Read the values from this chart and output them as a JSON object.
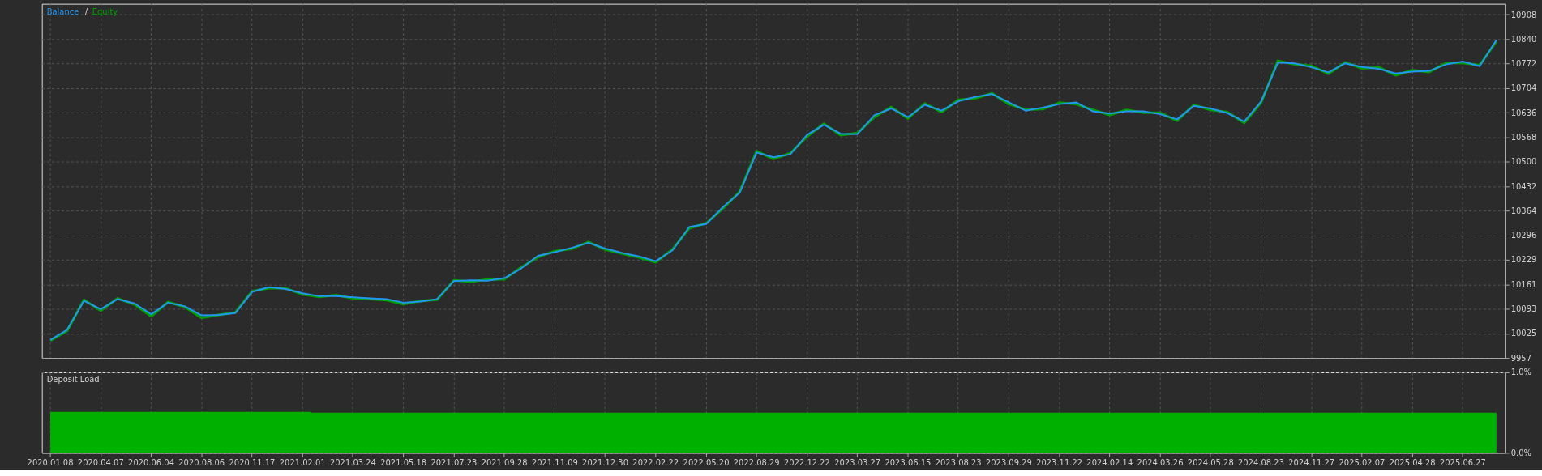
{
  "chart_data": [
    {
      "type": "line",
      "legend": "top left",
      "annotations": [
        "/"
      ],
      "grid": true,
      "line_style": "solid",
      "marker": "none",
      "tick_labels": "y",
      "categories": [
        "2020.01.08",
        null,
        null,
        "2020.04.07",
        null,
        null,
        "2020.06.04",
        null,
        null,
        "2020.08.06",
        null,
        null,
        "2020.11.17",
        null,
        null,
        "2021.02.01",
        null,
        null,
        "2021.03.24",
        null,
        null,
        "2021.05.18",
        null,
        null,
        "2021.07.23",
        null,
        null,
        "2021.09.28",
        null,
        null,
        "2021.11.09",
        null,
        null,
        "2021.12.30",
        null,
        null,
        "2022.02.22",
        null,
        null,
        "2022.05.20",
        null,
        null,
        "2022.08.29",
        null,
        null,
        "2022.12.22",
        null,
        null,
        "2023.03.27",
        null,
        null,
        "2023.06.15",
        null,
        null,
        "2023.08.23",
        null,
        null,
        "2023.09.29",
        null,
        null,
        "2023.11.22",
        null,
        null,
        "2024.02.14",
        null,
        null,
        "2024.03.26",
        null,
        null,
        "2024.05.28",
        null,
        null,
        "2024.08.23",
        null,
        null,
        "2024.11.27",
        null,
        null,
        "2025.02.07",
        null,
        null,
        "2025.04.28",
        null,
        null,
        "2025.06.27",
        null,
        null
      ],
      "ylim": [
        9957,
        10938
      ],
      "yticks": [
        9957,
        10025,
        10093,
        10161,
        10229,
        10296,
        10364,
        10432,
        10500,
        10568,
        10636,
        10704,
        10772,
        10840,
        10908
      ],
      "series": [
        {
          "name": "Equity",
          "color": "#00a000",
          "values": [
            10005,
            10032,
            10118,
            10088,
            10122,
            10105,
            10072,
            10112,
            10098,
            10068,
            10076,
            10083,
            10142,
            10150,
            10150,
            10133,
            10126,
            10131,
            10122,
            10120,
            10117,
            10106,
            10115,
            10118,
            10172,
            10168,
            10174,
            10175,
            10208,
            10236,
            10253,
            10259,
            10278,
            10257,
            10246,
            10235,
            10222,
            10258,
            10316,
            10330,
            10371,
            10418,
            10530,
            10508,
            10524,
            10570,
            10606,
            10574,
            10580,
            10624,
            10652,
            10620,
            10662,
            10638,
            10672,
            10676,
            10690,
            10660,
            10645,
            10646,
            10664,
            10660,
            10644,
            10630,
            10644,
            10636,
            10636,
            10614,
            10658,
            10644,
            10638,
            10608,
            10664,
            10780,
            10770,
            10766,
            10744,
            10776,
            10759,
            10762,
            10740,
            10754,
            10749,
            10774,
            10774,
            10768,
            10834
          ]
        },
        {
          "name": "Balance",
          "color": "#2196f3",
          "values": [
            10007,
            10035,
            10115,
            10092,
            10120,
            10108,
            10078,
            10110,
            10100,
            10075,
            10076,
            10081,
            10140,
            10153,
            10148,
            10136,
            10128,
            10128,
            10125,
            10122,
            10120,
            10110,
            10113,
            10120,
            10170,
            10172,
            10171,
            10178,
            10205,
            10240,
            10250,
            10262,
            10276,
            10260,
            10248,
            10238,
            10225,
            10255,
            10320,
            10328,
            10375,
            10415,
            10526,
            10513,
            10521,
            10575,
            10603,
            10578,
            10577,
            10629,
            10648,
            10624,
            10658,
            10642,
            10668,
            10680,
            10688,
            10665,
            10642,
            10650,
            10660,
            10665,
            10640,
            10634,
            10640,
            10640,
            10632,
            10618,
            10655,
            10648,
            10635,
            10612,
            10667,
            10775,
            10773,
            10762,
            10748,
            10773,
            10763,
            10758,
            10745,
            10750,
            10752,
            10770,
            10778,
            10765,
            10838
          ]
        }
      ]
    },
    {
      "type": "area",
      "title": "Deposit Load",
      "grid": true,
      "categories": [
        "2020.01.08",
        null,
        null,
        "2020.04.07",
        null,
        null,
        "2020.06.04",
        null,
        null,
        "2020.08.06",
        null,
        null,
        "2020.11.17",
        null,
        null,
        "2021.02.01",
        null,
        null,
        "2021.03.24",
        null,
        null,
        "2021.05.18",
        null,
        null,
        "2021.07.23",
        null,
        null,
        "2021.09.28",
        null,
        null,
        "2021.11.09",
        null,
        null,
        "2021.12.30",
        null,
        null,
        "2022.02.22",
        null,
        null,
        "2022.05.20",
        null,
        null,
        "2022.08.29",
        null,
        null,
        "2022.12.22",
        null,
        null,
        "2023.03.27",
        null,
        null,
        "2023.06.15",
        null,
        null,
        "2023.08.23",
        null,
        null,
        "2023.09.29",
        null,
        null,
        "2023.11.22",
        null,
        null,
        "2024.02.14",
        null,
        null,
        "2024.03.26",
        null,
        null,
        "2024.05.28",
        null,
        null,
        "2024.08.23",
        null,
        null,
        "2024.11.27",
        null,
        null,
        "2025.02.07",
        null,
        null,
        "2025.04.28",
        null,
        null,
        "2025.06.27",
        null,
        null
      ],
      "ylim": [
        0,
        1
      ],
      "yticks": [
        {
          "value": 0,
          "label": "0.0%"
        },
        {
          "value": 1,
          "label": "1.0%"
        }
      ],
      "series": [
        {
          "color": "#00b000",
          "values": [
            0.51,
            0.51,
            0.51,
            0.51,
            0.51,
            0.51,
            0.51,
            0.51,
            0.51,
            0.51,
            0.51,
            0.51,
            0.51,
            0.51,
            0.51,
            0.51,
            0.5,
            0.5,
            0.5,
            0.5,
            0.5,
            0.5,
            0.5,
            0.5,
            0.5,
            0.5,
            0.5,
            0.5,
            0.5,
            0.5,
            0.5,
            0.5,
            0.5,
            0.5,
            0.5,
            0.5,
            0.5,
            0.5,
            0.5,
            0.5,
            0.5,
            0.5,
            0.5,
            0.5,
            0.5,
            0.5,
            0.5,
            0.5,
            0.5,
            0.5,
            0.5,
            0.5,
            0.5,
            0.5,
            0.5,
            0.5,
            0.5,
            0.5,
            0.5,
            0.5,
            0.5,
            0.5,
            0.5,
            0.5,
            0.5,
            0.5,
            0.5,
            0.5,
            0.5,
            0.5,
            0.5,
            0.5,
            0.5,
            0.5,
            0.5,
            0.5,
            0.5,
            0.5,
            0.5,
            0.5,
            0.5,
            0.5,
            0.5,
            0.5,
            0.5,
            0.5,
            0.5
          ]
        }
      ]
    }
  ]
}
